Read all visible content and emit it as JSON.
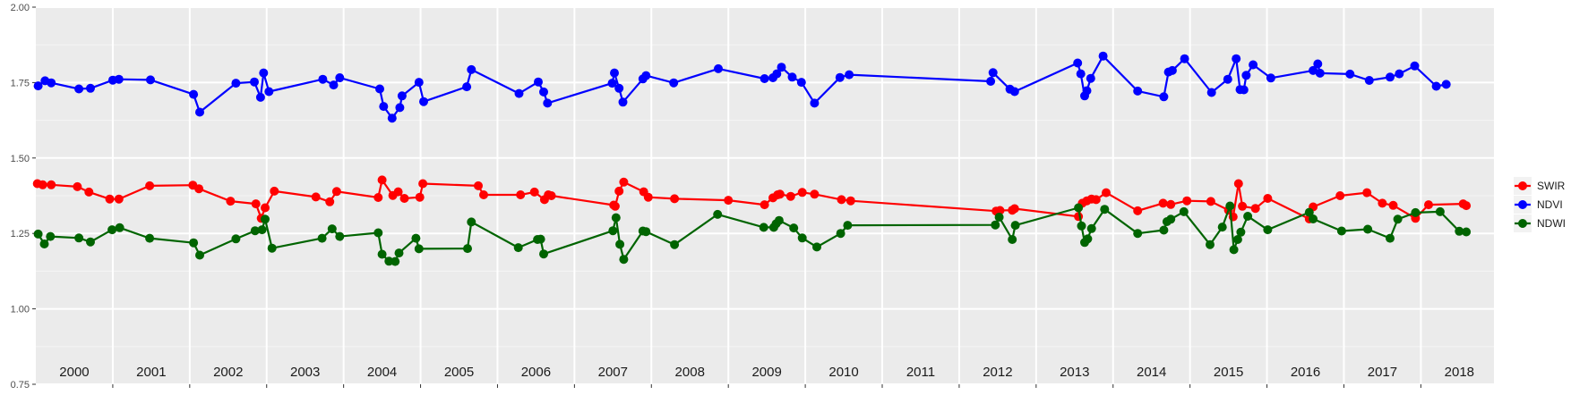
{
  "chart_data": {
    "type": "line",
    "title": "",
    "xlabel": "",
    "ylabel": "",
    "xlim": [
      2000.0,
      2018.95
    ],
    "ylim": [
      0.75,
      2.0
    ],
    "y_ticks": [
      "0.75",
      "1.00",
      "1.25",
      "1.50",
      "1.75",
      "2.00"
    ],
    "year_labels": [
      "2000",
      "2001",
      "2002",
      "2003",
      "2004",
      "2005",
      "2006",
      "2007",
      "2008",
      "2009",
      "2010",
      "2011",
      "2012",
      "2013",
      "2014",
      "2015",
      "2016",
      "2017",
      "2018"
    ],
    "grid": true,
    "panel_background": "#ebebeb",
    "legend": {
      "position": "right",
      "entries": [
        "SWIR",
        "NDVI",
        "NDWI"
      ]
    },
    "series": [
      {
        "name": "SWIR",
        "color": "#ff0000",
        "x": [
          2000.02,
          2000.09,
          2000.2,
          2000.54,
          2000.69,
          2000.96,
          2001.08,
          2001.48,
          2002.04,
          2002.12,
          2002.53,
          2002.86,
          2002.93,
          2002.98,
          2003.1,
          2003.64,
          2003.82,
          2003.91,
          2004.45,
          2004.5,
          2004.64,
          2004.71,
          2004.79,
          2004.99,
          2005.03,
          2005.75,
          2005.82,
          2006.3,
          2006.48,
          2006.61,
          2006.66,
          2006.7,
          2007.51,
          2007.53,
          2007.58,
          2007.64,
          2007.9,
          2007.96,
          2008.3,
          2009.0,
          2009.47,
          2009.58,
          2009.64,
          2009.67,
          2009.81,
          2009.96,
          2010.12,
          2010.47,
          2010.59,
          2012.48,
          2012.53,
          2012.69,
          2012.72,
          2013.55,
          2013.6,
          2013.66,
          2013.72,
          2013.78,
          2013.91,
          2014.32,
          2014.65,
          2014.75,
          2014.96,
          2015.27,
          2015.5,
          2015.56,
          2015.63,
          2015.68,
          2015.85,
          2016.01,
          2016.55,
          2016.6,
          2016.95,
          2017.3,
          2017.5,
          2017.64,
          2017.93,
          2018.1,
          2018.55,
          2018.59
        ],
        "values": [
          1.415,
          1.411,
          1.411,
          1.405,
          1.387,
          1.364,
          1.364,
          1.408,
          1.41,
          1.398,
          1.357,
          1.348,
          1.3,
          1.335,
          1.39,
          1.371,
          1.355,
          1.389,
          1.369,
          1.427,
          1.376,
          1.388,
          1.366,
          1.37,
          1.415,
          1.408,
          1.378,
          1.378,
          1.387,
          1.362,
          1.378,
          1.375,
          1.344,
          1.34,
          1.39,
          1.42,
          1.388,
          1.37,
          1.365,
          1.36,
          1.345,
          1.368,
          1.378,
          1.38,
          1.373,
          1.386,
          1.38,
          1.362,
          1.358,
          1.324,
          1.326,
          1.327,
          1.332,
          1.306,
          1.35,
          1.358,
          1.364,
          1.362,
          1.385,
          1.325,
          1.35,
          1.346,
          1.358,
          1.356,
          1.327,
          1.305,
          1.415,
          1.34,
          1.333,
          1.366,
          1.298,
          1.338,
          1.375,
          1.385,
          1.35,
          1.343,
          1.3,
          1.345,
          1.348,
          1.342
        ]
      },
      {
        "name": "NDVI",
        "color": "#0000ff",
        "x": [
          2000.03,
          2000.12,
          2000.2,
          2000.56,
          2000.71,
          2001.0,
          2001.08,
          2001.49,
          2002.05,
          2002.13,
          2002.6,
          2002.84,
          2002.92,
          2002.96,
          2003.03,
          2003.73,
          2003.87,
          2003.95,
          2004.47,
          2004.52,
          2004.63,
          2004.73,
          2004.76,
          2004.98,
          2005.04,
          2005.6,
          2005.66,
          2006.28,
          2006.53,
          2006.6,
          2006.65,
          2007.49,
          2007.52,
          2007.58,
          2007.63,
          2007.89,
          2007.93,
          2008.29,
          2008.87,
          2009.47,
          2009.58,
          2009.63,
          2009.69,
          2009.83,
          2009.95,
          2010.12,
          2010.45,
          2010.57,
          2012.41,
          2012.44,
          2012.66,
          2012.72,
          2013.54,
          2013.58,
          2013.63,
          2013.66,
          2013.71,
          2013.87,
          2014.32,
          2014.66,
          2014.72,
          2014.77,
          2014.93,
          2015.28,
          2015.49,
          2015.6,
          2015.65,
          2015.7,
          2015.73,
          2015.82,
          2016.05,
          2016.6,
          2016.66,
          2016.69,
          2017.08,
          2017.33,
          2017.6,
          2017.72,
          2017.92,
          2018.2,
          2018.33
        ],
        "values": [
          1.739,
          1.756,
          1.749,
          1.729,
          1.731,
          1.758,
          1.761,
          1.759,
          1.711,
          1.652,
          1.748,
          1.752,
          1.701,
          1.782,
          1.72,
          1.761,
          1.742,
          1.766,
          1.729,
          1.671,
          1.632,
          1.667,
          1.706,
          1.751,
          1.687,
          1.736,
          1.793,
          1.714,
          1.752,
          1.719,
          1.682,
          1.748,
          1.782,
          1.731,
          1.685,
          1.762,
          1.773,
          1.749,
          1.796,
          1.763,
          1.766,
          1.779,
          1.801,
          1.768,
          1.751,
          1.682,
          1.767,
          1.776,
          1.754,
          1.783,
          1.728,
          1.72,
          1.815,
          1.779,
          1.706,
          1.723,
          1.764,
          1.838,
          1.722,
          1.703,
          1.785,
          1.79,
          1.829,
          1.717,
          1.761,
          1.829,
          1.727,
          1.726,
          1.774,
          1.809,
          1.765,
          1.79,
          1.812,
          1.781,
          1.778,
          1.757,
          1.768,
          1.779,
          1.805,
          1.738,
          1.744
        ]
      },
      {
        "name": "NDWI",
        "color": "#006400",
        "x": [
          2000.03,
          2000.11,
          2000.19,
          2000.56,
          2000.71,
          2000.99,
          2001.09,
          2001.48,
          2002.05,
          2002.13,
          2002.6,
          2002.85,
          2002.94,
          2002.98,
          2003.07,
          2003.72,
          2003.85,
          2003.95,
          2004.45,
          2004.5,
          2004.59,
          2004.67,
          2004.72,
          2004.94,
          2004.98,
          2005.61,
          2005.66,
          2006.27,
          2006.52,
          2006.56,
          2006.6,
          2007.5,
          2007.54,
          2007.59,
          2007.64,
          2007.89,
          2007.93,
          2008.3,
          2008.86,
          2009.46,
          2009.59,
          2009.62,
          2009.66,
          2009.85,
          2009.96,
          2010.15,
          2010.46,
          2010.55,
          2012.47,
          2012.52,
          2012.69,
          2012.73,
          2013.55,
          2013.59,
          2013.63,
          2013.67,
          2013.72,
          2013.89,
          2014.32,
          2014.66,
          2014.7,
          2014.75,
          2014.92,
          2015.26,
          2015.42,
          2015.52,
          2015.57,
          2015.62,
          2015.66,
          2015.75,
          2016.01,
          2016.55,
          2016.6,
          2016.97,
          2017.31,
          2017.6,
          2017.7,
          2017.93,
          2018.25,
          2018.5,
          2018.59
        ],
        "values": [
          1.248,
          1.215,
          1.24,
          1.235,
          1.222,
          1.262,
          1.269,
          1.234,
          1.219,
          1.178,
          1.232,
          1.259,
          1.262,
          1.297,
          1.201,
          1.234,
          1.265,
          1.24,
          1.252,
          1.181,
          1.158,
          1.157,
          1.185,
          1.234,
          1.199,
          1.2,
          1.288,
          1.203,
          1.23,
          1.231,
          1.182,
          1.259,
          1.302,
          1.214,
          1.164,
          1.258,
          1.256,
          1.213,
          1.313,
          1.27,
          1.27,
          1.282,
          1.293,
          1.268,
          1.235,
          1.205,
          1.25,
          1.277,
          1.278,
          1.304,
          1.23,
          1.277,
          1.335,
          1.275,
          1.22,
          1.232,
          1.266,
          1.33,
          1.25,
          1.261,
          1.289,
          1.297,
          1.322,
          1.213,
          1.271,
          1.341,
          1.196,
          1.23,
          1.254,
          1.307,
          1.262,
          1.32,
          1.298,
          1.258,
          1.264,
          1.234,
          1.297,
          1.319,
          1.322,
          1.257,
          1.255
        ]
      }
    ]
  }
}
